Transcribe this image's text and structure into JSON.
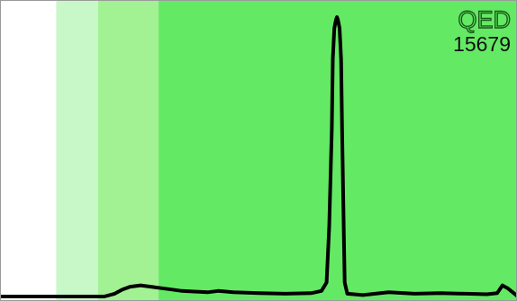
{
  "brand": {
    "logo_text": "QED",
    "value": "15679"
  },
  "colors": {
    "background": "#ffffff",
    "band_1": "#c8f7c8",
    "band_2": "#a2f192",
    "band_3": "#64e964",
    "line": "#000000",
    "logo_fill": "#5ee85e",
    "logo_outline": "#1d5a1d"
  },
  "chart_data": {
    "type": "line",
    "title": "",
    "xlabel": "",
    "ylabel": "",
    "xlim": [
      0,
      1
    ],
    "ylim": [
      0,
      1
    ],
    "grid": false,
    "bands": [
      {
        "x0": 0.0,
        "x1": 0.107,
        "color": "#ffffff"
      },
      {
        "x0": 0.107,
        "x1": 0.188,
        "color": "#c8f7c8"
      },
      {
        "x0": 0.188,
        "x1": 0.305,
        "color": "#a2f192"
      },
      {
        "x0": 0.305,
        "x1": 1.0,
        "color": "#64e964"
      }
    ],
    "series": [
      {
        "x": [
          0.0,
          0.05,
          0.1,
          0.15,
          0.2,
          0.22,
          0.235,
          0.25,
          0.27,
          0.29,
          0.31,
          0.33,
          0.35,
          0.37,
          0.4,
          0.42,
          0.45,
          0.5,
          0.55,
          0.6,
          0.62,
          0.63,
          0.635,
          0.64,
          0.642,
          0.645,
          0.648,
          0.65,
          0.652,
          0.655,
          0.658,
          0.66,
          0.663,
          0.665,
          0.67,
          0.7,
          0.75,
          0.8,
          0.85,
          0.9,
          0.94,
          0.96,
          0.97,
          0.98,
          1.0
        ],
        "y": [
          0.0,
          0.0,
          0.0,
          0.0,
          0.0,
          0.01,
          0.025,
          0.035,
          0.04,
          0.035,
          0.03,
          0.025,
          0.02,
          0.018,
          0.015,
          0.02,
          0.015,
          0.012,
          0.01,
          0.012,
          0.02,
          0.05,
          0.25,
          0.6,
          0.85,
          0.96,
          0.99,
          1.0,
          0.99,
          0.96,
          0.85,
          0.6,
          0.25,
          0.05,
          0.01,
          0.005,
          0.015,
          0.01,
          0.012,
          0.01,
          0.008,
          0.012,
          0.04,
          0.03,
          0.0
        ]
      }
    ]
  }
}
